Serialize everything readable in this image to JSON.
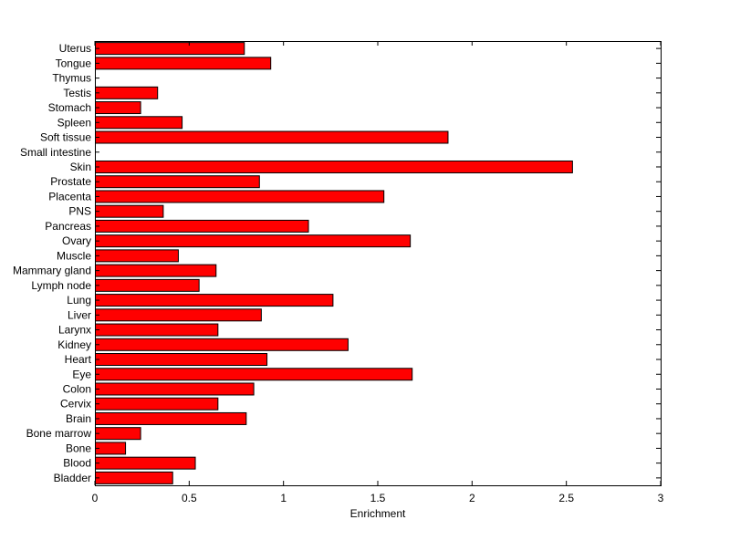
{
  "chart_data": {
    "type": "bar",
    "orientation": "horizontal",
    "title": "",
    "xlabel": "Enrichment",
    "ylabel": "",
    "xlim": [
      0,
      3
    ],
    "xticks": [
      0,
      0.5,
      1,
      1.5,
      2,
      2.5,
      3
    ],
    "xtick_labels": [
      "0",
      "0.5",
      "1",
      "1.5",
      "2",
      "2.5",
      "3"
    ],
    "grid": false,
    "bar_color": "#ff0000",
    "bar_edge_color": "#000000",
    "categories": [
      "Bladder",
      "Blood",
      "Bone",
      "Bone marrow",
      "Brain",
      "Cervix",
      "Colon",
      "Eye",
      "Heart",
      "Kidney",
      "Larynx",
      "Liver",
      "Lung",
      "Lymph node",
      "Mammary gland",
      "Muscle",
      "Ovary",
      "Pancreas",
      "PNS",
      "Placenta",
      "Prostate",
      "Skin",
      "Small intestine",
      "Soft tissue",
      "Spleen",
      "Stomach",
      "Testis",
      "Thymus",
      "Tongue",
      "Uterus"
    ],
    "values": [
      0.41,
      0.53,
      0.16,
      0.24,
      0.8,
      0.65,
      0.84,
      1.68,
      0.91,
      1.34,
      0.65,
      0.88,
      1.26,
      0.55,
      0.64,
      0.44,
      1.67,
      1.13,
      0.36,
      1.53,
      0.87,
      2.53,
      0,
      1.87,
      0.46,
      0.24,
      0.33,
      0,
      0.93,
      0.79
    ]
  }
}
